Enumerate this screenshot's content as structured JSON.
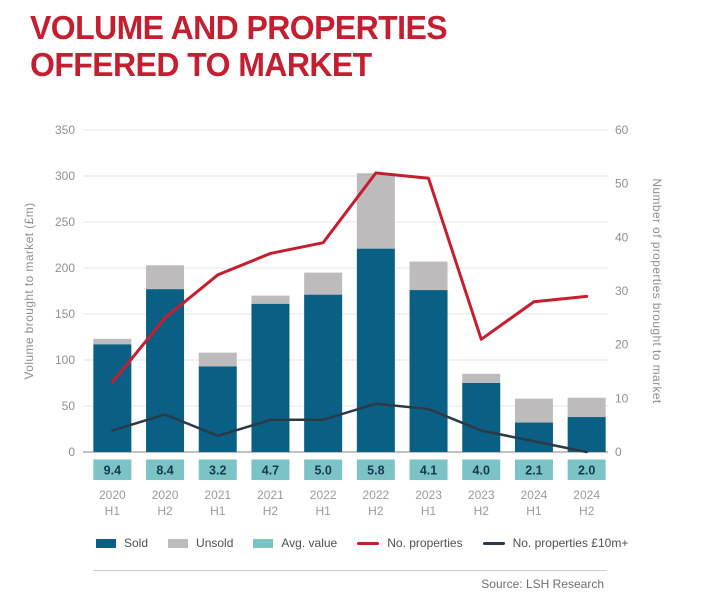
{
  "header": {
    "title_line1": "VOLUME AND PROPERTIES",
    "title_line2": "OFFERED TO MARKET",
    "title_color": "#C41F30"
  },
  "footer": {
    "source": "Source: LSH Research"
  },
  "chart_data": {
    "type": "bar+line",
    "categories": [
      {
        "year": "2020",
        "half": "H1"
      },
      {
        "year": "2020",
        "half": "H2"
      },
      {
        "year": "2021",
        "half": "H1"
      },
      {
        "year": "2021",
        "half": "H2"
      },
      {
        "year": "2022",
        "half": "H1"
      },
      {
        "year": "2022",
        "half": "H2"
      },
      {
        "year": "2023",
        "half": "H1"
      },
      {
        "year": "2023",
        "half": "H2"
      },
      {
        "year": "2024",
        "half": "H1"
      },
      {
        "year": "2024",
        "half": "H2"
      }
    ],
    "series": [
      {
        "name": "Sold",
        "kind": "bar",
        "stack": "volume",
        "axis": "left",
        "color": "#0A6084",
        "values": [
          117,
          177,
          93,
          161,
          171,
          221,
          176,
          75,
          32,
          38
        ]
      },
      {
        "name": "Unsold",
        "kind": "bar",
        "stack": "volume",
        "axis": "left",
        "color": "#BDBBBB",
        "values": [
          6,
          26,
          15,
          9,
          24,
          82,
          31,
          10,
          26,
          21
        ]
      },
      {
        "name": "No. properties",
        "kind": "line",
        "axis": "right",
        "color": "#C41F30",
        "stroke_width": 3,
        "values": [
          13,
          25,
          33,
          37,
          39,
          52,
          51,
          21,
          28,
          29
        ]
      },
      {
        "name": "No. properties £10m+",
        "kind": "line",
        "axis": "right",
        "color": "#2C3A48",
        "stroke_width": 2.5,
        "values": [
          4,
          7,
          3,
          6,
          6,
          9,
          8,
          4,
          2,
          0
        ]
      }
    ],
    "avg_value_row": {
      "name": "Avg. value",
      "color": "#7BC3C5",
      "text_color": "#123A50",
      "values": [
        "9.4",
        "8.4",
        "3.2",
        "4.7",
        "5.0",
        "5.8",
        "4.1",
        "4.0",
        "2.1",
        "2.0"
      ]
    },
    "left_axis": {
      "label": "Volume brought to market (£m)",
      "min": 0,
      "max": 350,
      "step": 50
    },
    "right_axis": {
      "label": "Number of properties brought to market",
      "min": 0,
      "max": 60,
      "step": 10
    },
    "grid": true,
    "legend_position": "bottom",
    "legend": {
      "items": [
        {
          "label": "Sold",
          "swatch": "bar",
          "color": "#0A6084"
        },
        {
          "label": "Unsold",
          "swatch": "bar",
          "color": "#BDBBBB"
        },
        {
          "label": "Avg. value",
          "swatch": "bar",
          "color": "#7BC3C5"
        },
        {
          "label": "No. properties",
          "swatch": "line",
          "color": "#C41F30"
        },
        {
          "label": "No. properties £10m+",
          "swatch": "line",
          "color": "#2C3A48"
        }
      ]
    }
  }
}
